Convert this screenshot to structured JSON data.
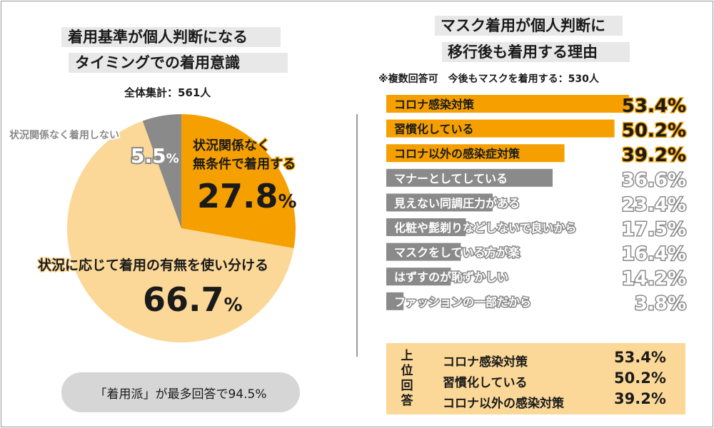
{
  "left": {
    "title_line1": "着用基準が個人判断になる",
    "title_line2": "タイミングでの着用意識",
    "total": "全体集計：561人",
    "footer": "「着用派」が最多回答で94.5%"
  },
  "right": {
    "title_line1": "マスク着用が個人判断に",
    "title_line2": "移行後も着用する理由",
    "note": "※複数回答可　今後もマスクを着用する：530人",
    "summary_vertical": "上位回答",
    "summary": [
      {
        "label": "コロナ感染対策",
        "value": "53.4%"
      },
      {
        "label": "習慣化している",
        "value": "50.2%"
      },
      {
        "label": "コロナ以外の感染対策",
        "value": "39.2%"
      }
    ]
  },
  "colors": {
    "orange": "#f5a000",
    "light_orange": "#fbd897",
    "gray": "#8a8a8a",
    "title_band": "#e8e8e8"
  },
  "chart_data": [
    {
      "type": "pie",
      "title": "着用基準が個人判断になるタイミングでの着用意識",
      "slices": [
        {
          "label": "状況関係なく無条件で着用する",
          "value": 27.8,
          "color": "#f5a000"
        },
        {
          "label": "状況に応じて着用の有無を使い分ける",
          "value": 66.7,
          "color": "#fbd897"
        },
        {
          "label": "状況関係なく着用しない",
          "value": 5.5,
          "color": "#8a8a8a"
        }
      ]
    },
    {
      "type": "bar",
      "orientation": "horizontal",
      "title": "マスク着用が個人判断に移行後も着用する理由",
      "categories": [
        "コロナ感染対策",
        "習慣化している",
        "コロナ以外の感染症対策",
        "マナーとしてしている",
        "見えない同調圧力がある",
        "化粧や髭剃りなどしないで良いから",
        "マスクをしている方が楽",
        "はずすのが恥ずかしい",
        "ファッションの一部だから"
      ],
      "values": [
        53.4,
        50.2,
        39.2,
        36.6,
        23.4,
        17.5,
        16.4,
        14.2,
        3.8
      ],
      "value_labels": [
        "53.4%",
        "50.2%",
        "39.2%",
        "36.6%",
        "23.4%",
        "17.5%",
        "16.4%",
        "14.2%",
        "3.8%"
      ],
      "highlight_top": 3
    }
  ]
}
